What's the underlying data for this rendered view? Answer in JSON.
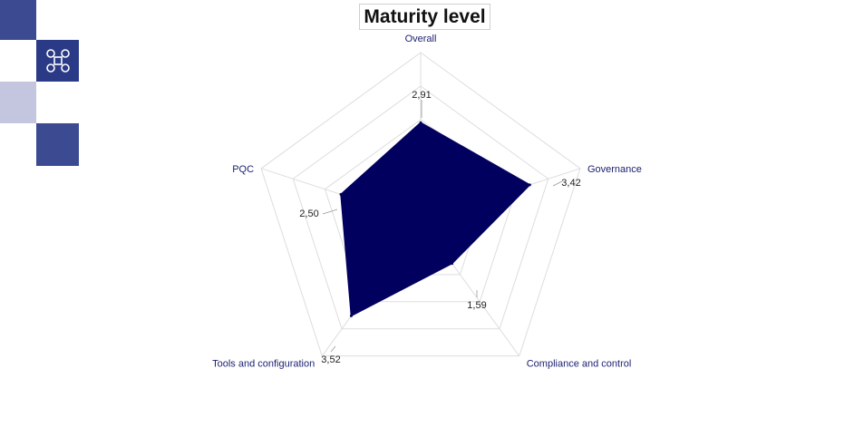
{
  "header": {
    "title": "Maturity level"
  },
  "decor": {
    "logo_icon": "command-key-icon"
  },
  "colors": {
    "fill": "#02005e",
    "axis_label": "#1a1f6e",
    "grid": "#dddddd",
    "deco_dark": "#2a3a87",
    "deco_mid": "#3c4a92",
    "deco_light": "#c3c6de"
  },
  "chart_data": {
    "type": "radar",
    "title": "Maturity level",
    "axes": [
      "Overall",
      "Governance",
      "Compliance and control",
      "Tools and configuration",
      "PQC"
    ],
    "values": [
      2.91,
      3.42,
      1.59,
      3.52,
      2.5
    ],
    "value_labels": [
      "2,91",
      "3,42",
      "1,59",
      "3,52",
      "2,50"
    ],
    "range": [
      0,
      5
    ],
    "grid_levels": 5,
    "legend": "none"
  }
}
